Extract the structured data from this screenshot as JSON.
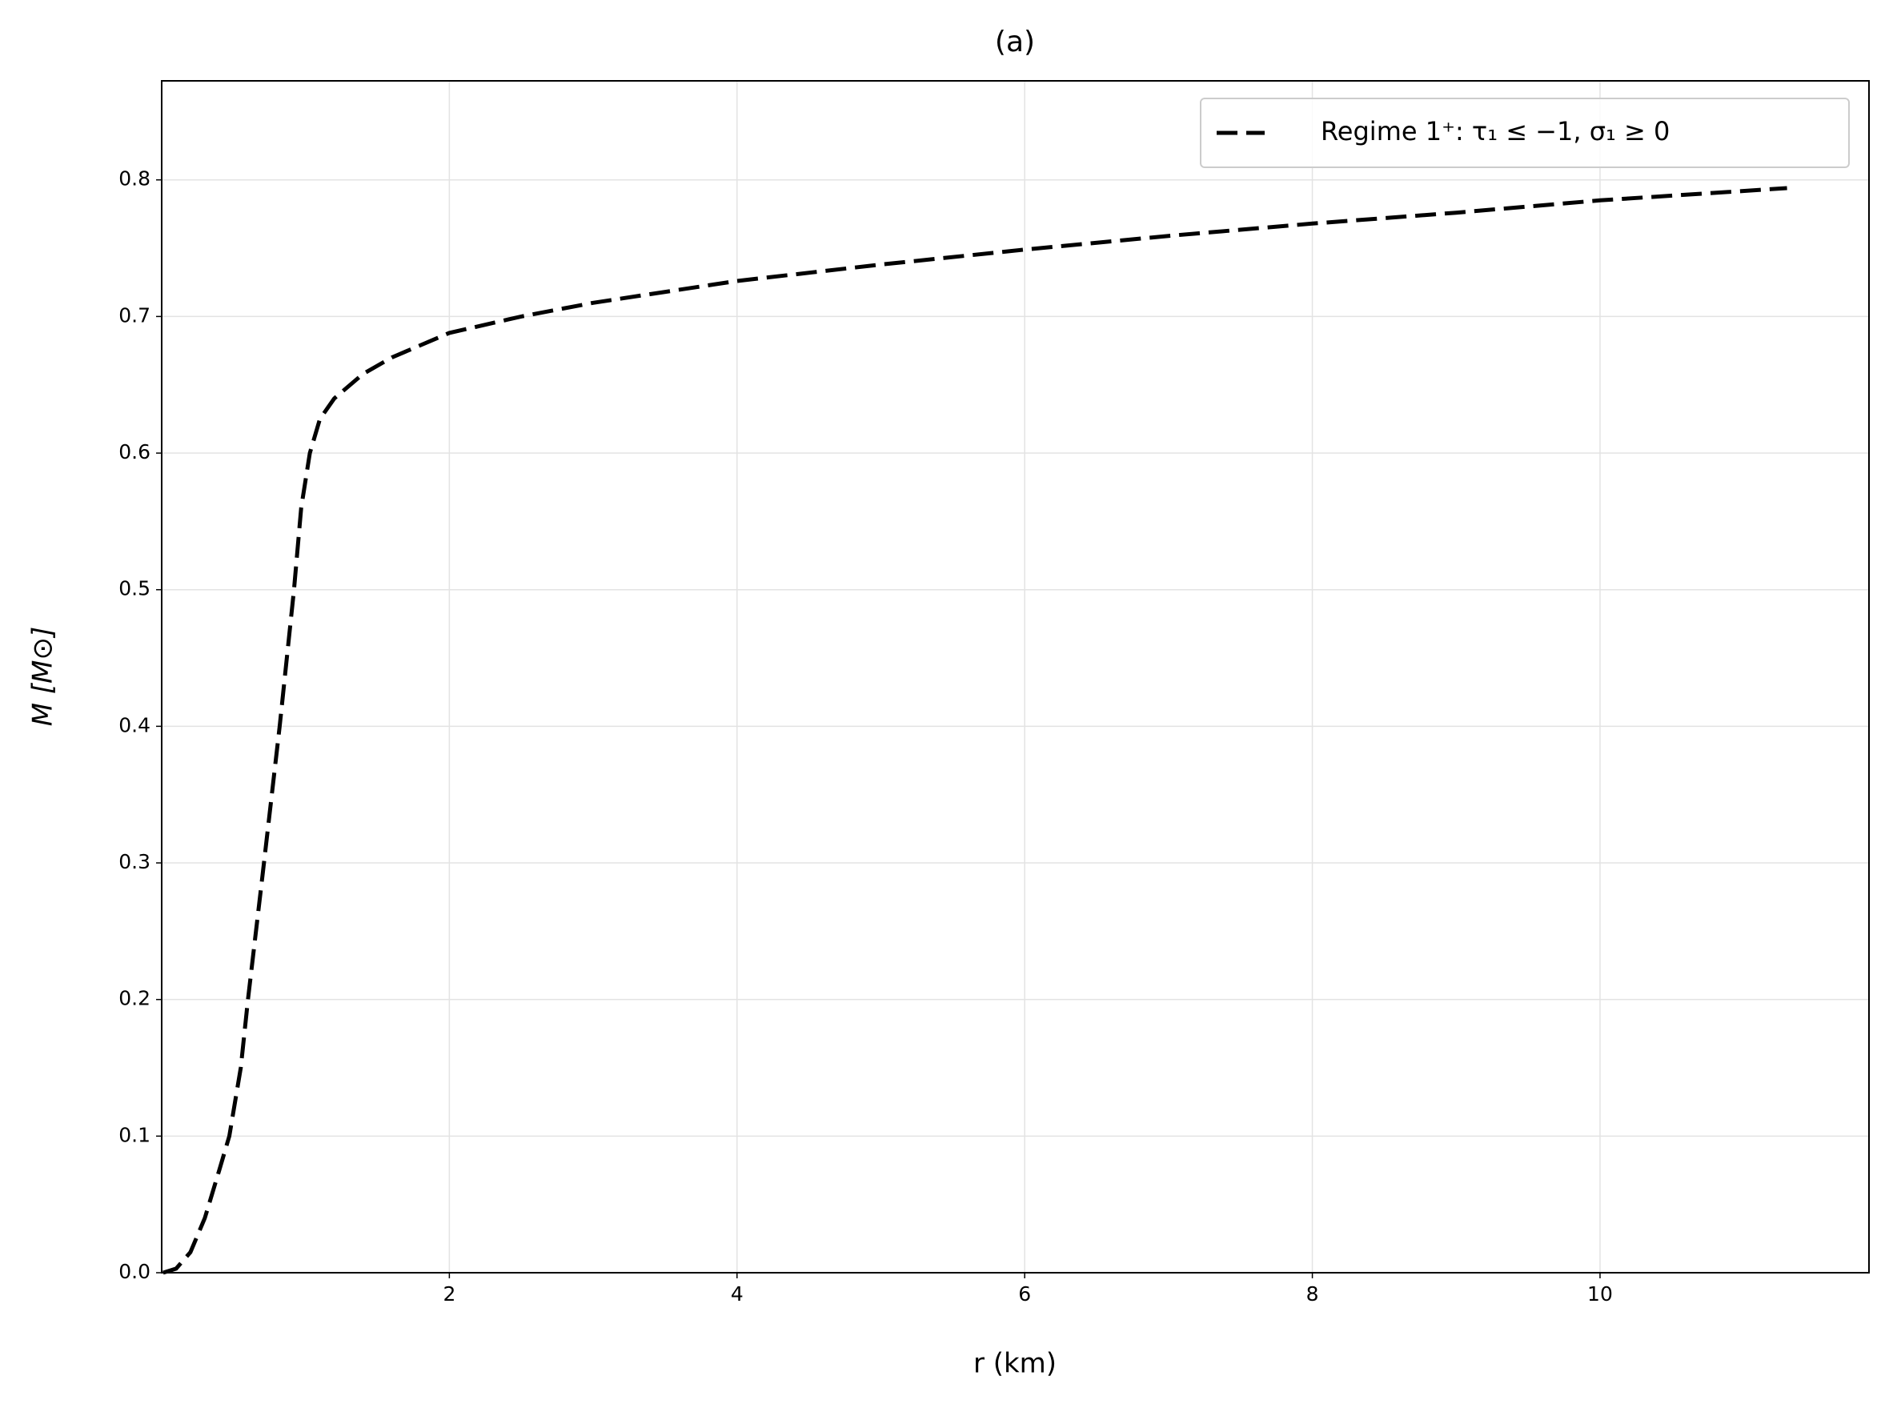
{
  "chart_data": {
    "type": "line",
    "title": "(a)",
    "x_label": "r (km)",
    "y_label": "M [M⊙]",
    "xlim": [
      0,
      11.87
    ],
    "ylim": [
      0,
      0.8725
    ],
    "xticks": [
      2,
      4,
      6,
      8,
      10
    ],
    "yticks": [
      {
        "value": 0,
        "label": "0.0"
      },
      0.1,
      0.2,
      0.3,
      0.4,
      0.5,
      0.6,
      0.7,
      0.8
    ],
    "grid": true,
    "legend": "upper right",
    "series": [
      {
        "name": "Regime 1⁺: τ₁ ≤ −1, σ₁ ≥ 0",
        "color": "#000000",
        "dashed": true,
        "x": [
          0.01,
          0.1,
          0.2,
          0.3,
          0.4,
          0.47,
          0.55,
          0.6,
          0.7,
          0.82,
          0.92,
          0.97,
          1.03,
          1.1,
          1.2,
          1.4,
          1.6,
          2,
          2.5,
          3,
          4,
          5,
          6,
          7,
          8,
          9,
          10,
          11.3
        ],
        "values": [
          0,
          0.003,
          0.015,
          0.04,
          0.075,
          0.1,
          0.15,
          0.2,
          0.29,
          0.4,
          0.5,
          0.56,
          0.6,
          0.625,
          0.64,
          0.658,
          0.67,
          0.688,
          0.7,
          0.71,
          0.726,
          0.738,
          0.749,
          0.759,
          0.768,
          0.776,
          0.785,
          0.794
        ]
      }
    ]
  }
}
